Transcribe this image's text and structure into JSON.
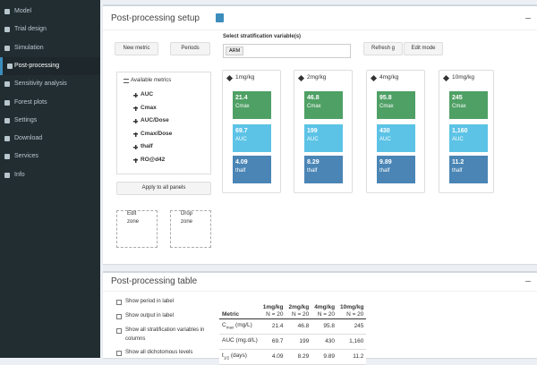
{
  "sidebar": {
    "items": [
      "Model",
      "Trial design",
      "Simulation",
      "Post-processing",
      "Sensitivity analysis",
      "Forest plots",
      "Settings",
      "Download",
      "Services",
      "Info"
    ],
    "active": 3
  },
  "setup": {
    "title": "Post-processing setup",
    "buttons": [
      "New metric",
      "Periods"
    ],
    "strat_label": "Select stratification variable(s)",
    "strat_tag": "ARM",
    "buttons_right": [
      "Refresh g",
      "Edit mode"
    ],
    "available": {
      "title": "Available metrics",
      "items": [
        "AUC",
        "Cmax",
        "AUC/Dose",
        "Cmax/Dose",
        "thalf",
        "RO@d42"
      ]
    },
    "apply": "Apply to all panels",
    "zones": [
      "Edit zone",
      "Drop zone"
    ],
    "tile_colors": [
      "#4fa065",
      "#5cc3e6",
      "#4a85b5"
    ],
    "panels": [
      {
        "title": "1mg/kg",
        "tiles": [
          {
            "value": "21.4",
            "label": "Cmax"
          },
          {
            "value": "69.7",
            "label": "AUC"
          },
          {
            "value": "4.09",
            "label": "thalf"
          }
        ]
      },
      {
        "title": "2mg/kg",
        "tiles": [
          {
            "value": "46.8",
            "label": "Cmax"
          },
          {
            "value": "199",
            "label": "AUC"
          },
          {
            "value": "8.29",
            "label": "thalf"
          }
        ]
      },
      {
        "title": "4mg/kg",
        "tiles": [
          {
            "value": "95.8",
            "label": "Cmax"
          },
          {
            "value": "430",
            "label": "AUC"
          },
          {
            "value": "9.89",
            "label": "thalf"
          }
        ]
      },
      {
        "title": "10mg/kg",
        "tiles": [
          {
            "value": "245",
            "label": "Cmax"
          },
          {
            "value": "1,160",
            "label": "AUC"
          },
          {
            "value": "11.2",
            "label": "thalf"
          }
        ]
      }
    ]
  },
  "table_box": {
    "title": "Post-processing table",
    "options": [
      "Show period in label",
      "Show output in label",
      "Show all stratification variables in columns",
      "Show all dichotomous levels"
    ],
    "table": {
      "header": [
        {
          "name": "Metric"
        },
        {
          "name": "1mg/kg",
          "n": "N = 20"
        },
        {
          "name": "2mg/kg",
          "n": "N = 20"
        },
        {
          "name": "4mg/kg",
          "n": "N = 20"
        },
        {
          "name": "10mg/kg",
          "n": "N = 20"
        }
      ],
      "rows": [
        {
          "metric": {
            "base": "C",
            "sub": "max",
            "unit": " (mg/L)"
          },
          "cells": [
            "21.4",
            "46.8",
            "95.8",
            "245"
          ]
        },
        {
          "metric": {
            "base": "AUC",
            "sub": "",
            "unit": " (mg.d/L)"
          },
          "cells": [
            "69.7",
            "199",
            "430",
            "1,160"
          ]
        },
        {
          "metric": {
            "base": "t",
            "sub": "1/2",
            "unit": " (days)"
          },
          "cells": [
            "4.09",
            "8.29",
            "9.89",
            "11.2"
          ]
        }
      ]
    }
  }
}
